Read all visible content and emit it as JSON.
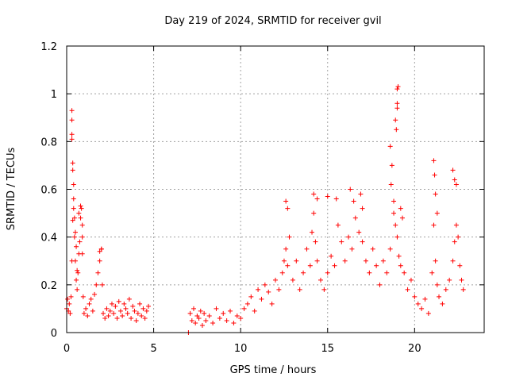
{
  "chart_data": {
    "type": "scatter",
    "title": "Day 219 of 2024, SRMTID for receiver gvil",
    "xlabel": "GPS time / hours",
    "ylabel": "SRMTID / TECUs",
    "xlim": [
      0,
      24
    ],
    "ylim": [
      0,
      1.2
    ],
    "xticks": [
      0,
      5,
      10,
      15,
      20
    ],
    "xtick_labels": [
      "0",
      "5",
      "10",
      "15",
      "20"
    ],
    "yticks": [
      0,
      0.2,
      0.4,
      0.6,
      0.8,
      1.0,
      1.2
    ],
    "ytick_labels": [
      "0",
      "0.2",
      "0.4",
      "0.6",
      "0.8",
      "1",
      "1.2"
    ],
    "grid": true,
    "marker": "+",
    "series": [
      {
        "name": "SRMTID",
        "color": "#ff0000",
        "x": [
          0.0,
          0.05,
          0.1,
          0.15,
          0.2,
          0.25,
          0.3,
          0.35,
          0.4,
          0.45,
          0.5,
          0.55,
          0.6,
          0.65,
          0.7,
          0.75,
          0.8,
          0.85,
          0.9,
          0.95,
          1.0,
          1.1,
          1.2,
          1.3,
          1.4,
          1.5,
          1.6,
          1.7,
          1.8,
          1.9,
          2.0,
          2.05,
          2.1,
          2.2,
          2.3,
          2.4,
          2.5,
          2.6,
          2.7,
          2.8,
          2.9,
          3.0,
          3.1,
          3.2,
          3.3,
          3.4,
          3.5,
          3.6,
          3.7,
          3.8,
          3.9,
          4.0,
          4.1,
          4.2,
          4.3,
          4.4,
          4.5,
          4.6,
          4.7,
          7.0,
          7.1,
          7.2,
          7.3,
          7.4,
          7.5,
          7.6,
          7.7,
          7.8,
          7.9,
          8.0,
          8.2,
          8.4,
          8.6,
          8.8,
          9.0,
          9.2,
          9.4,
          9.6,
          9.8,
          10.0,
          10.2,
          10.4,
          10.6,
          10.8,
          11.0,
          11.2,
          11.4,
          11.6,
          11.8,
          12.0,
          12.2,
          12.4,
          12.5,
          12.6,
          12.7,
          12.8,
          13.0,
          13.2,
          13.4,
          13.6,
          13.8,
          14.0,
          14.1,
          14.2,
          14.3,
          14.4,
          14.6,
          14.8,
          15.0,
          15.2,
          15.4,
          15.6,
          15.8,
          16.0,
          16.2,
          16.4,
          16.6,
          16.8,
          17.0,
          17.2,
          17.4,
          17.6,
          17.8,
          18.0,
          18.2,
          18.4,
          18.6,
          18.8,
          18.9,
          19.0,
          19.1,
          19.2,
          19.4,
          19.6,
          19.8,
          20.0,
          20.2,
          20.4,
          20.6,
          20.8,
          21.0,
          21.1,
          21.2,
          21.3,
          21.4,
          21.6,
          21.8,
          22.0,
          22.2,
          22.3,
          22.4,
          22.5,
          22.6,
          22.7,
          22.8,
          0.3,
          0.3,
          0.3,
          0.3,
          0.35,
          0.35,
          0.4,
          0.4,
          0.45,
          0.5,
          0.55,
          0.6,
          0.7,
          0.8,
          0.9,
          0.9,
          1.9,
          2.0,
          18.9,
          19.0,
          19.0,
          19.05,
          19.0,
          18.95,
          18.6,
          18.7,
          18.65,
          18.8,
          19.2,
          19.3,
          21.1,
          21.15,
          21.2,
          21.3,
          22.2,
          22.3,
          22.4,
          12.6,
          12.7,
          14.2,
          14.4,
          15.0,
          15.5,
          16.3,
          16.5,
          16.9,
          17.0
        ],
        "y": [
          0.1,
          0.14,
          0.09,
          0.12,
          0.08,
          0.15,
          0.3,
          0.47,
          0.52,
          0.4,
          0.3,
          0.22,
          0.18,
          0.25,
          0.33,
          0.38,
          0.48,
          0.52,
          0.45,
          0.15,
          0.08,
          0.1,
          0.07,
          0.12,
          0.14,
          0.09,
          0.16,
          0.2,
          0.25,
          0.3,
          0.35,
          0.2,
          0.08,
          0.06,
          0.1,
          0.07,
          0.09,
          0.12,
          0.08,
          0.11,
          0.06,
          0.13,
          0.09,
          0.07,
          0.12,
          0.1,
          0.08,
          0.14,
          0.06,
          0.11,
          0.09,
          0.05,
          0.08,
          0.12,
          0.07,
          0.1,
          0.06,
          0.09,
          0.11,
          0.0,
          0.08,
          0.05,
          0.1,
          0.04,
          0.07,
          0.06,
          0.09,
          0.03,
          0.08,
          0.05,
          0.07,
          0.04,
          0.1,
          0.06,
          0.08,
          0.05,
          0.09,
          0.04,
          0.07,
          0.06,
          0.1,
          0.12,
          0.15,
          0.09,
          0.18,
          0.14,
          0.2,
          0.17,
          0.12,
          0.22,
          0.18,
          0.25,
          0.3,
          0.35,
          0.28,
          0.4,
          0.22,
          0.3,
          0.18,
          0.25,
          0.35,
          0.28,
          0.42,
          0.5,
          0.38,
          0.3,
          0.22,
          0.18,
          0.25,
          0.32,
          0.28,
          0.45,
          0.38,
          0.3,
          0.4,
          0.35,
          0.48,
          0.42,
          0.38,
          0.3,
          0.25,
          0.35,
          0.28,
          0.2,
          0.3,
          0.25,
          0.35,
          0.5,
          0.45,
          0.4,
          0.32,
          0.28,
          0.25,
          0.18,
          0.22,
          0.15,
          0.12,
          0.1,
          0.14,
          0.08,
          0.25,
          0.45,
          0.3,
          0.2,
          0.15,
          0.12,
          0.18,
          0.22,
          0.3,
          0.38,
          0.45,
          0.4,
          0.28,
          0.22,
          0.18,
          0.81,
          0.83,
          0.89,
          0.93,
          0.71,
          0.68,
          0.62,
          0.56,
          0.48,
          0.42,
          0.36,
          0.26,
          0.5,
          0.53,
          0.4,
          0.33,
          0.34,
          0.35,
          0.89,
          0.94,
          0.96,
          1.03,
          1.02,
          0.85,
          0.78,
          0.7,
          0.62,
          0.55,
          0.52,
          0.48,
          0.72,
          0.66,
          0.58,
          0.5,
          0.68,
          0.64,
          0.62,
          0.55,
          0.52,
          0.58,
          0.56,
          0.57,
          0.56,
          0.6,
          0.55,
          0.58,
          0.52
        ]
      }
    ]
  }
}
